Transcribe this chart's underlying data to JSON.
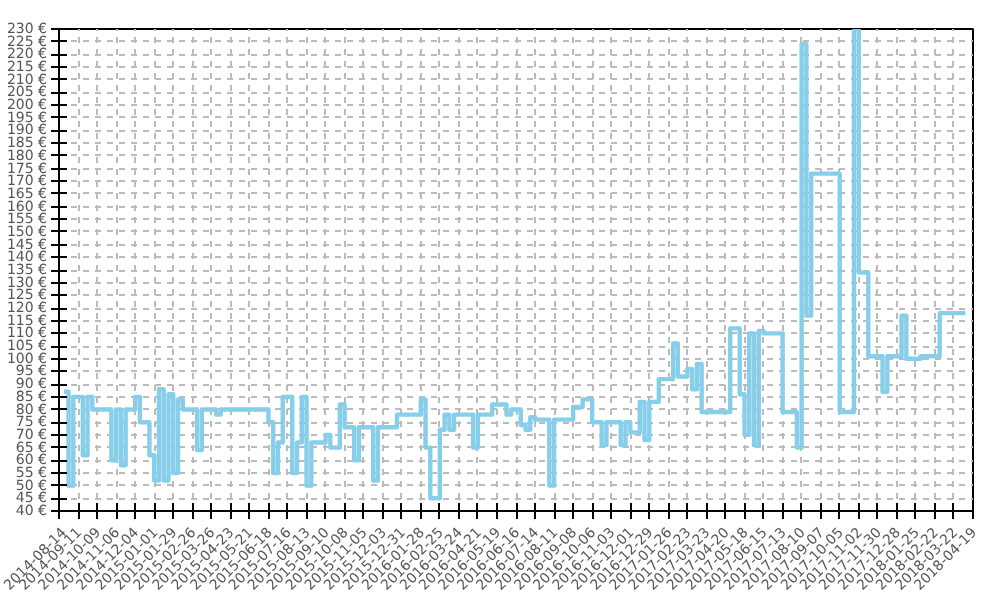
{
  "chart_data": {
    "type": "step",
    "color": "#87ceeb",
    "x": [
      "2014-08-21",
      "2014-08-28",
      "2014-09-04",
      "2014-09-18",
      "2014-09-25",
      "2014-10-02",
      "2014-10-30",
      "2014-11-06",
      "2014-11-13",
      "2014-11-20",
      "2014-12-04",
      "2014-12-11",
      "2014-12-25",
      "2015-01-01",
      "2015-01-08",
      "2015-01-15",
      "2015-01-22",
      "2015-01-29",
      "2015-02-05",
      "2015-02-12",
      "2015-03-05",
      "2015-03-12",
      "2015-04-02",
      "2015-04-09",
      "2015-06-18",
      "2015-06-25",
      "2015-07-02",
      "2015-07-09",
      "2015-07-23",
      "2015-07-30",
      "2015-08-06",
      "2015-08-13",
      "2015-08-20",
      "2015-09-10",
      "2015-09-17",
      "2015-10-01",
      "2015-10-08",
      "2015-10-22",
      "2015-10-29",
      "2015-11-19",
      "2015-11-26",
      "2015-12-24",
      "2016-01-28",
      "2016-02-04",
      "2016-02-11",
      "2016-02-25",
      "2016-03-03",
      "2016-03-10",
      "2016-03-17",
      "2016-04-14",
      "2016-04-21",
      "2016-05-12",
      "2016-06-02",
      "2016-06-09",
      "2016-06-23",
      "2016-06-30",
      "2016-07-07",
      "2016-07-14",
      "2016-08-04",
      "2016-08-11",
      "2016-09-08",
      "2016-09-22",
      "2016-10-06",
      "2016-10-20",
      "2016-10-27",
      "2016-11-17",
      "2016-11-24",
      "2016-12-01",
      "2016-12-15",
      "2016-12-22",
      "2016-12-29",
      "2017-01-12",
      "2017-02-02",
      "2017-02-09",
      "2017-02-23",
      "2017-03-02",
      "2017-03-09",
      "2017-03-16",
      "2017-04-27",
      "2017-05-11",
      "2017-05-18",
      "2017-05-25",
      "2017-06-01",
      "2017-06-08",
      "2017-06-15",
      "2017-07-13",
      "2017-08-03",
      "2017-08-10",
      "2017-08-17",
      "2017-08-24",
      "2017-10-05",
      "2017-10-26",
      "2017-11-02",
      "2017-11-16",
      "2017-12-07",
      "2017-12-14",
      "2018-01-04",
      "2018-01-11",
      "2018-02-01",
      "2018-03-01",
      "2018-04-08"
    ],
    "values": [
      87,
      50,
      85,
      62,
      85,
      80,
      60,
      80,
      58,
      80,
      85,
      75,
      62,
      52,
      88,
      52,
      86,
      55,
      84,
      80,
      64,
      80,
      78,
      80,
      75,
      55,
      67,
      85,
      55,
      67,
      85,
      50,
      67,
      70,
      65,
      82,
      73,
      60,
      73,
      52,
      73,
      78,
      84,
      65,
      45,
      72,
      78,
      72,
      78,
      65,
      78,
      82,
      78,
      80,
      74,
      72,
      77,
      76,
      50,
      76,
      81,
      84,
      75,
      66,
      75,
      66,
      75,
      71,
      83,
      68,
      83,
      92,
      106,
      93,
      96,
      88,
      98,
      79,
      112,
      86,
      70,
      110,
      66,
      111,
      110,
      79,
      65,
      224,
      117,
      173,
      79,
      230,
      134,
      101,
      87,
      101,
      117,
      100,
      101,
      118,
      118
    ],
    "xlim": [
      "2014-08-14",
      "2018-04-19"
    ],
    "xticks": [
      "2014-08-14",
      "2014-09-11",
      "2014-10-09",
      "2014-11-06",
      "2014-12-04",
      "2015-01-01",
      "2015-01-29",
      "2015-02-26",
      "2015-03-26",
      "2015-04-23",
      "2015-05-21",
      "2015-06-18",
      "2015-07-16",
      "2015-08-13",
      "2015-09-10",
      "2015-10-08",
      "2015-11-05",
      "2015-12-03",
      "2015-12-31",
      "2016-01-28",
      "2016-02-25",
      "2016-03-24",
      "2016-04-21",
      "2016-05-19",
      "2016-06-16",
      "2016-07-14",
      "2016-08-11",
      "2016-09-08",
      "2016-10-06",
      "2016-11-03",
      "2016-12-01",
      "2016-12-29",
      "2017-01-26",
      "2017-02-23",
      "2017-03-23",
      "2017-04-20",
      "2017-05-18",
      "2017-06-15",
      "2017-07-13",
      "2017-08-10",
      "2017-09-07",
      "2017-10-05",
      "2017-11-02",
      "2017-11-30",
      "2017-12-28",
      "2018-01-25",
      "2018-02-22",
      "2018-03-22",
      "2018-04-19"
    ],
    "ylim": [
      40,
      230
    ],
    "yticks": [
      {
        "value": 40,
        "label": "40 €"
      },
      {
        "value": 45,
        "label": "45 €"
      },
      {
        "value": 50,
        "label": "50 €"
      },
      {
        "value": 55,
        "label": "55 €"
      },
      {
        "value": 60,
        "label": "60 €"
      },
      {
        "value": 65,
        "label": "65 €"
      },
      {
        "value": 70,
        "label": "70 €"
      },
      {
        "value": 75,
        "label": "75 €"
      },
      {
        "value": 80,
        "label": "80 €"
      },
      {
        "value": 85,
        "label": "85 €"
      },
      {
        "value": 90,
        "label": "90 €"
      },
      {
        "value": 95,
        "label": "95 €"
      },
      {
        "value": 100,
        "label": "100 €"
      },
      {
        "value": 105,
        "label": "105 €"
      },
      {
        "value": 110,
        "label": "110 €"
      },
      {
        "value": 115,
        "label": "115 €"
      },
      {
        "value": 120,
        "label": "120 €"
      },
      {
        "value": 125,
        "label": "125 €"
      },
      {
        "value": 130,
        "label": "130 €"
      },
      {
        "value": 135,
        "label": "135 €"
      },
      {
        "value": 140,
        "label": "140 €"
      },
      {
        "value": 145,
        "label": "145 €"
      },
      {
        "value": 150,
        "label": "150 €"
      },
      {
        "value": 155,
        "label": "155 €"
      },
      {
        "value": 160,
        "label": "160 €"
      },
      {
        "value": 165,
        "label": "165 €"
      },
      {
        "value": 170,
        "label": "170 €"
      },
      {
        "value": 175,
        "label": "175 €"
      },
      {
        "value": 180,
        "label": "180 €"
      },
      {
        "value": 185,
        "label": "185 €"
      },
      {
        "value": 190,
        "label": "190 €"
      },
      {
        "value": 195,
        "label": "195 €"
      },
      {
        "value": 200,
        "label": "200 €"
      },
      {
        "value": 205,
        "label": "205 €"
      },
      {
        "value": 210,
        "label": "210 €"
      },
      {
        "value": 215,
        "label": "215 €"
      },
      {
        "value": 220,
        "label": "220 €"
      },
      {
        "value": 225,
        "label": "225 €"
      },
      {
        "value": 230,
        "label": "230 €"
      }
    ],
    "grid": true,
    "line_style": "solid"
  }
}
